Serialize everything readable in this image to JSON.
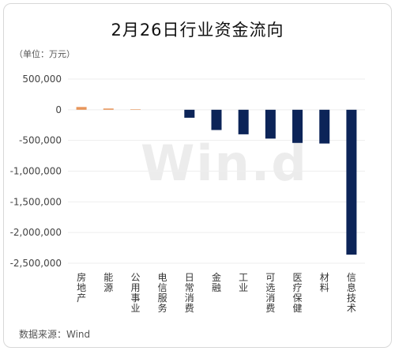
{
  "title": "2月26日行业资金流向",
  "unit_label": "（单位：万元）",
  "source": "数据来源：Wind",
  "watermark": "Win.d",
  "colors": {
    "positive": "#e8955a",
    "negative": "#0c2458",
    "grid": "#eeeeee"
  },
  "chart_data": {
    "type": "bar",
    "categories": [
      "房地产",
      "能源",
      "公用事业",
      "电信服务",
      "日常消费",
      "金融",
      "工业",
      "可选消费",
      "医疗保健",
      "材料",
      "信息技术"
    ],
    "values": [
      45000,
      20000,
      8000,
      0,
      -130000,
      -330000,
      -400000,
      -470000,
      -540000,
      -550000,
      -2360000
    ],
    "ylim": [
      -2500000,
      500000
    ],
    "yticks": [
      500000,
      0,
      -500000,
      -1000000,
      -1500000,
      -2000000,
      -2500000
    ],
    "ytick_labels": [
      "500,000",
      "0",
      "-500,000",
      "-1,000,000",
      "-1,500,000",
      "-2,000,000",
      "-2,500,000"
    ],
    "grid": true,
    "legend": "none"
  }
}
